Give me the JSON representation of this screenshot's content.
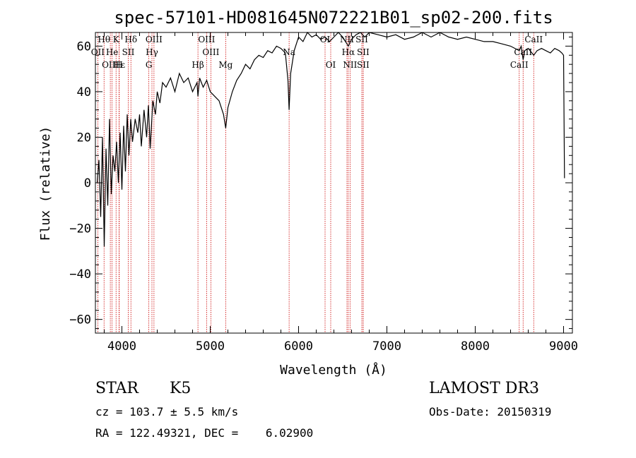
{
  "colors": {
    "foreground": "#000000",
    "line_marker": "#cc0000",
    "background": "#ffffff"
  },
  "chart_data": {
    "type": "line",
    "title": "spec-57101-HD081645N072221B01_sp02-200.fits",
    "xlabel": "Wavelength (Å)",
    "ylabel": "Flux (relative)",
    "xlim": [
      3700,
      9100
    ],
    "ylim": [
      -66,
      66
    ],
    "xticks": [
      4000,
      5000,
      6000,
      7000,
      8000,
      9000
    ],
    "yticks": [
      -60,
      -40,
      -20,
      0,
      20,
      40,
      60
    ],
    "series": [
      {
        "name": "flux",
        "x": [
          3720,
          3740,
          3760,
          3780,
          3800,
          3820,
          3840,
          3860,
          3880,
          3900,
          3920,
          3940,
          3960,
          3980,
          4000,
          4020,
          4040,
          4060,
          4080,
          4100,
          4120,
          4150,
          4180,
          4200,
          4220,
          4250,
          4280,
          4300,
          4320,
          4350,
          4380,
          4400,
          4430,
          4460,
          4500,
          4550,
          4600,
          4650,
          4700,
          4750,
          4800,
          4850,
          4861,
          4880,
          4920,
          4960,
          5000,
          5050,
          5100,
          5150,
          5175,
          5200,
          5250,
          5300,
          5350,
          5400,
          5450,
          5500,
          5550,
          5600,
          5650,
          5700,
          5750,
          5800,
          5850,
          5880,
          5893,
          5910,
          5950,
          6000,
          6050,
          6100,
          6150,
          6200,
          6250,
          6300,
          6350,
          6400,
          6450,
          6500,
          6563,
          6600,
          6650,
          6700,
          6750,
          6800,
          6900,
          7000,
          7100,
          7200,
          7300,
          7400,
          7500,
          7600,
          7700,
          7800,
          7900,
          8000,
          8100,
          8200,
          8300,
          8400,
          8498,
          8520,
          8542,
          8560,
          8600,
          8662,
          8700,
          8750,
          8800,
          8850,
          8900,
          8950,
          8980,
          9000,
          9010
        ],
        "y": [
          0,
          10,
          -15,
          20,
          -28,
          15,
          -10,
          28,
          -5,
          12,
          5,
          18,
          0,
          22,
          -3,
          25,
          5,
          30,
          12,
          28,
          18,
          28,
          22,
          30,
          16,
          32,
          20,
          34,
          15,
          36,
          30,
          40,
          35,
          44,
          42,
          46,
          40,
          48,
          44,
          46,
          40,
          44,
          38,
          46,
          42,
          45,
          40,
          38,
          36,
          30,
          24,
          33,
          40,
          45,
          48,
          52,
          50,
          54,
          56,
          55,
          58,
          57,
          60,
          59,
          57,
          45,
          32,
          48,
          58,
          64,
          62,
          66,
          64,
          65,
          63,
          64,
          62,
          64,
          66,
          64,
          60,
          63,
          65,
          66,
          64,
          66,
          65,
          64,
          65,
          63,
          64,
          66,
          64,
          66,
          64,
          63,
          64,
          63,
          62,
          62,
          61,
          60,
          58,
          60,
          54,
          58,
          59,
          56,
          58,
          59,
          58,
          57,
          59,
          58,
          57,
          56,
          2
        ]
      }
    ],
    "annotations": [
      {
        "label": "Hθ",
        "wavelength": 3798,
        "row": 0
      },
      {
        "label": "K",
        "wavelength": 3934,
        "row": 0
      },
      {
        "label": "Hδ",
        "wavelength": 4102,
        "row": 0
      },
      {
        "label": "OIII",
        "wavelength": 4363,
        "row": 0
      },
      {
        "label": "OIII",
        "wavelength": 4959,
        "row": 0
      },
      {
        "label": "OI",
        "wavelength": 6300,
        "row": 0
      },
      {
        "label": "NII",
        "wavelength": 6548,
        "row": 0
      },
      {
        "label": "SII",
        "wavelength": 6716,
        "row": 0
      },
      {
        "label": "CaII",
        "wavelength": 8662,
        "row": 0
      },
      {
        "label": "OII",
        "wavelength": 3727,
        "row": 1
      },
      {
        "label": "He",
        "wavelength": 3889,
        "row": 1
      },
      {
        "label": "SII",
        "wavelength": 4072,
        "row": 1
      },
      {
        "label": "Hγ",
        "wavelength": 4340,
        "row": 1
      },
      {
        "label": "OIII",
        "wavelength": 5007,
        "row": 1
      },
      {
        "label": "Na",
        "wavelength": 5893,
        "row": 1
      },
      {
        "label": "Hα",
        "wavelength": 6563,
        "row": 1
      },
      {
        "label": "SII",
        "wavelength": 6731,
        "row": 1
      },
      {
        "label": "CaII",
        "wavelength": 8542,
        "row": 1
      },
      {
        "label": "OIII",
        "wavelength": 3869,
        "row": 2
      },
      {
        "label": "Hε",
        "wavelength": 3970,
        "row": 2
      },
      {
        "label": "H",
        "wavelength": 3968,
        "row": 2
      },
      {
        "label": "G",
        "wavelength": 4305,
        "row": 2
      },
      {
        "label": "Hβ",
        "wavelength": 4861,
        "row": 2
      },
      {
        "label": "Mg",
        "wavelength": 5175,
        "row": 2
      },
      {
        "label": "OI",
        "wavelength": 6364,
        "row": 2
      },
      {
        "label": "NII",
        "wavelength": 6583,
        "row": 2
      },
      {
        "label": "SII",
        "wavelength": 6731,
        "row": 2
      },
      {
        "label": "CaII",
        "wavelength": 8498,
        "row": 2
      }
    ]
  },
  "info": {
    "class": "STAR",
    "subclass": "K5",
    "survey": "LAMOST DR3",
    "redshift_line": "cz = 103.7 ± 5.5 km/s",
    "obs_date": "Obs-Date: 20150319",
    "coords": "RA = 122.49321, DEC =    6.02900"
  }
}
